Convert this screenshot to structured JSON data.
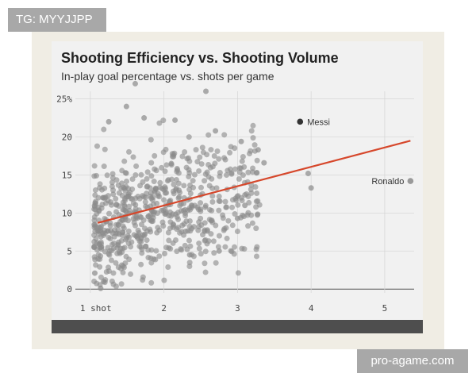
{
  "watermark_top": "TG: MYYJJPP",
  "watermark_bottom": "pro-agame.com",
  "chart_data": {
    "type": "scatter",
    "title": "Shooting Efficiency vs. Shooting Volume",
    "subtitle": "In-play goal percentage vs. shots per game",
    "xlabel": "",
    "ylabel": "",
    "xlim": [
      0.85,
      5.4
    ],
    "ylim": [
      -0.5,
      26
    ],
    "x_ticks": [
      {
        "value": 1,
        "label": "1 shot"
      },
      {
        "value": 2,
        "label": "2"
      },
      {
        "value": 3,
        "label": "3"
      },
      {
        "value": 4,
        "label": "4"
      },
      {
        "value": 5,
        "label": "5"
      }
    ],
    "y_ticks": [
      {
        "value": 0,
        "label": "0"
      },
      {
        "value": 5,
        "label": "5"
      },
      {
        "value": 10,
        "label": "10"
      },
      {
        "value": 15,
        "label": "15"
      },
      {
        "value": 20,
        "label": "20"
      },
      {
        "value": 25,
        "label": "25%"
      }
    ],
    "grid": true,
    "trend_line": {
      "x": [
        1.1,
        5.35
      ],
      "y": [
        8.7,
        19.5
      ],
      "color": "#d6472b"
    },
    "highlighted": [
      {
        "name": "Messi",
        "x": 3.85,
        "y": 22,
        "color": "#333333"
      },
      {
        "name": "Ronaldo",
        "x": 5.35,
        "y": 14.2,
        "color": "#999999"
      }
    ],
    "point_color": "#8a8a8a",
    "point_count": 650,
    "points_sample": [
      [
        1.61,
        27.0
      ],
      [
        2.57,
        26.0
      ],
      [
        1.49,
        24.0
      ],
      [
        1.25,
        22.0
      ],
      [
        1.73,
        22.5
      ],
      [
        2.15,
        22.2
      ],
      [
        2.7,
        20.8
      ],
      [
        3.05,
        19.4
      ],
      [
        3.28,
        18.3
      ],
      [
        3.36,
        16.6
      ],
      [
        2.1,
        16.5
      ],
      [
        3.96,
        15.2
      ],
      [
        4.0,
        13.3
      ],
      [
        3.1,
        11.0
      ],
      [
        1.18,
        1.0
      ],
      [
        1.14,
        0.1
      ],
      [
        1.06,
        2.1
      ],
      [
        2.75,
        5.0
      ],
      [
        2.35,
        4.5
      ],
      [
        3.0,
        9.3
      ]
    ]
  }
}
